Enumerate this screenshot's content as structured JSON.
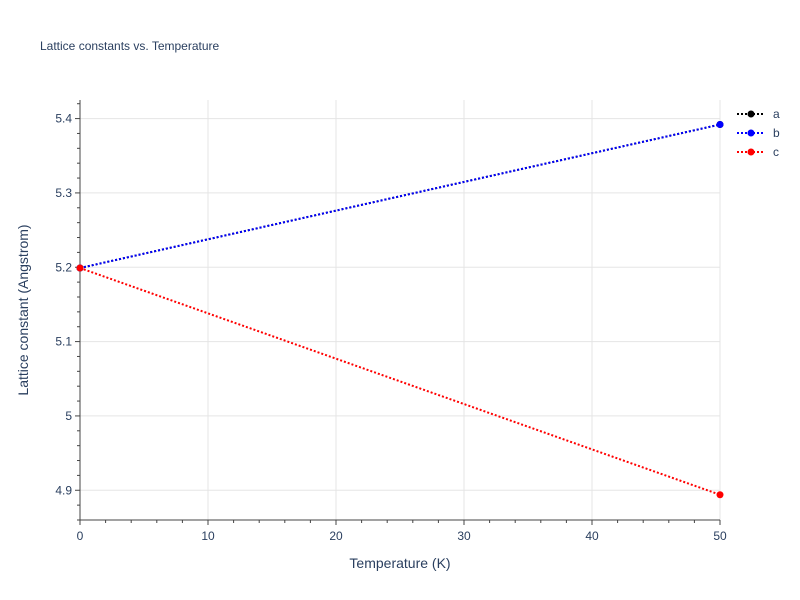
{
  "chart_data": {
    "type": "line",
    "title": "Lattice constants vs. Temperature",
    "xlabel": "Temperature (K)",
    "ylabel": "Lattice constant (Angstrom)",
    "xlim": [
      0,
      50
    ],
    "ylim": [
      4.86,
      5.425
    ],
    "x_ticks": [
      0,
      10,
      20,
      30,
      40,
      50
    ],
    "x_tick_labels": [
      "0",
      "10",
      "20",
      "30",
      "40",
      "50"
    ],
    "y_ticks": [
      4.9,
      5.0,
      5.1,
      5.2,
      5.3,
      5.4
    ],
    "y_tick_labels": [
      "4.9",
      "5",
      "5.1",
      "5.2",
      "5.3",
      "5.4"
    ],
    "grid": true,
    "legend_position": "top-right",
    "series": [
      {
        "name": "a",
        "color": "#000000",
        "x": [
          0,
          50
        ],
        "y": [
          5.199,
          5.392
        ]
      },
      {
        "name": "b",
        "color": "#0000ff",
        "x": [
          0,
          50
        ],
        "y": [
          5.199,
          5.392
        ]
      },
      {
        "name": "c",
        "color": "#ff0000",
        "x": [
          0,
          50
        ],
        "y": [
          5.199,
          4.894
        ]
      }
    ]
  }
}
